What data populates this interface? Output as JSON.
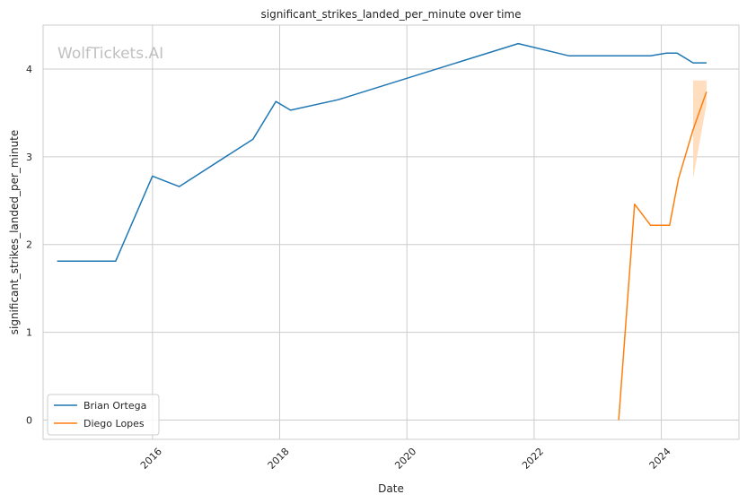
{
  "watermark": "WolfTickets.AI",
  "chart_data": {
    "type": "line",
    "title": "significant_strikes_landed_per_minute over time",
    "xlabel": "Date",
    "ylabel": "significant_strikes_landed_per_minute",
    "x_ticks": [
      "2016",
      "2018",
      "2020",
      "2022",
      "2024"
    ],
    "y_ticks": [
      0,
      1,
      2,
      3,
      4
    ],
    "xlim": [
      2014.28,
      2025.22
    ],
    "ylim": [
      -0.22,
      4.5
    ],
    "grid": true,
    "legend_position": "lower-left",
    "series": [
      {
        "name": "Brian Ortega",
        "color": "#1f77b4",
        "points": [
          [
            2014.5,
            1.81
          ],
          [
            2015.42,
            1.81
          ],
          [
            2016.0,
            2.78
          ],
          [
            2016.42,
            2.66
          ],
          [
            2017.58,
            3.2
          ],
          [
            2017.94,
            3.63
          ],
          [
            2018.17,
            3.53
          ],
          [
            2018.92,
            3.65
          ],
          [
            2021.75,
            4.29
          ],
          [
            2022.55,
            4.15
          ],
          [
            2023.83,
            4.15
          ],
          [
            2024.08,
            4.18
          ],
          [
            2024.25,
            4.18
          ],
          [
            2024.5,
            4.07
          ],
          [
            2024.71,
            4.07
          ]
        ]
      },
      {
        "name": "Diego Lopes",
        "color": "#ff7f0e",
        "band_color": "#ffd9b8",
        "points": [
          [
            2023.33,
            0.0
          ],
          [
            2023.58,
            2.46
          ],
          [
            2023.83,
            2.22
          ],
          [
            2024.13,
            2.22
          ],
          [
            2024.27,
            2.75
          ],
          [
            2024.5,
            3.31
          ],
          [
            2024.71,
            3.74
          ]
        ],
        "band": [
          [
            2024.5,
            2.75,
            3.87
          ],
          [
            2024.71,
            3.6,
            3.87
          ]
        ]
      }
    ]
  }
}
